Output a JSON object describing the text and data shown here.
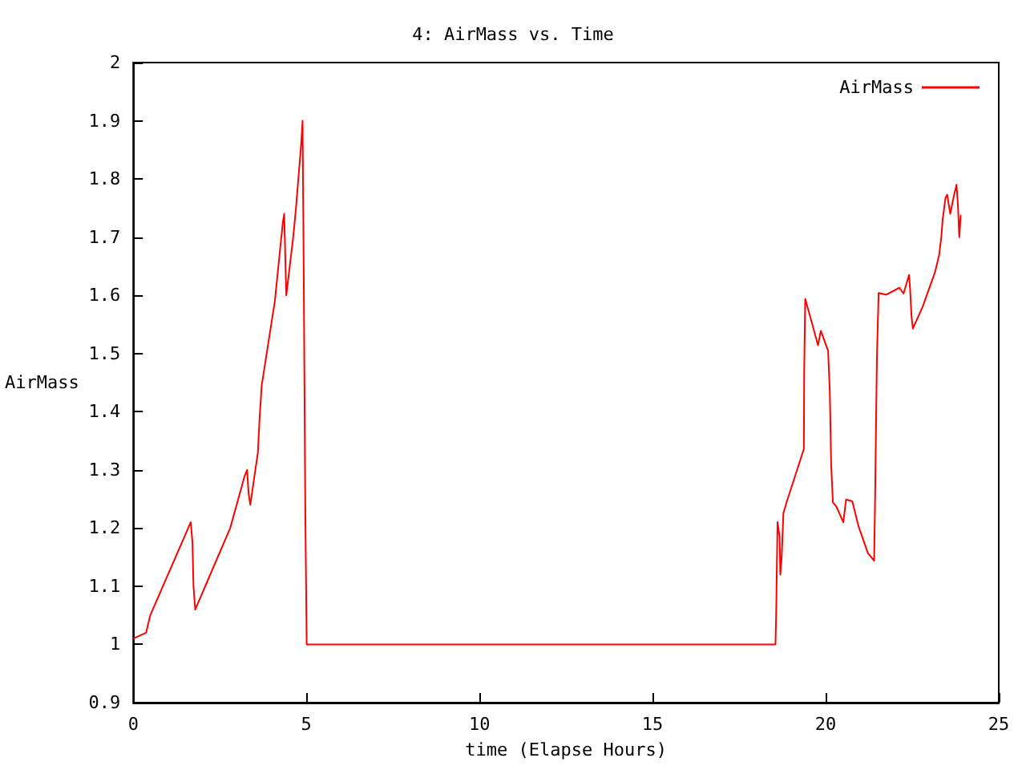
{
  "chart_data": {
    "type": "line",
    "title": "4: AirMass vs. Time",
    "xlabel": "time (Elapse Hours)",
    "ylabel": "AirMass",
    "x": [
      0,
      0.37,
      0.49,
      1.66,
      1.71,
      1.74,
      1.79,
      2.8,
      3.22,
      3.29,
      3.33,
      3.38,
      3.6,
      3.65,
      3.71,
      4.09,
      4.32,
      4.36,
      4.42,
      4.62,
      4.7,
      4.85,
      4.89,
      4.92,
      4.97,
      5.01,
      18.55,
      18.57,
      18.61,
      18.67,
      18.69,
      18.73,
      18.78,
      18.87,
      19.37,
      19.38,
      19.41,
      19.55,
      19.78,
      19.86,
      20.07,
      20.12,
      20.16,
      20.21,
      20.31,
      20.51,
      20.59,
      20.77,
      20.95,
      21.22,
      21.4,
      21.43,
      21.48,
      21.53,
      21.75,
      22.13,
      22.25,
      22.41,
      22.44,
      22.48,
      22.52,
      22.8,
      23.16,
      23.28,
      23.34,
      23.38,
      23.46,
      23.51,
      23.6,
      23.69,
      23.78,
      23.82,
      23.86,
      23.9
    ],
    "series": [
      {
        "name": "AirMass",
        "color": "#ff0000",
        "values": [
          1.01,
          1.02,
          1.05,
          1.21,
          1.175,
          1.1,
          1.06,
          1.2,
          1.29,
          1.3,
          1.26,
          1.24,
          1.33,
          1.39,
          1.445,
          1.59,
          1.725,
          1.74,
          1.6,
          1.7,
          1.75,
          1.86,
          1.9,
          1.67,
          1.226,
          1,
          1,
          1.05,
          1.21,
          1.185,
          1.12,
          1.15,
          1.226,
          1.244,
          1.336,
          1.47,
          1.594,
          1.564,
          1.514,
          1.539,
          1.505,
          1.434,
          1.308,
          1.244,
          1.237,
          1.21,
          1.249,
          1.246,
          1.203,
          1.157,
          1.144,
          1.258,
          1.491,
          1.604,
          1.601,
          1.613,
          1.603,
          1.635,
          1.61,
          1.564,
          1.543,
          1.58,
          1.64,
          1.67,
          1.7,
          1.73,
          1.767,
          1.773,
          1.74,
          1.767,
          1.79,
          1.756,
          1.7,
          1.738
        ]
      }
    ],
    "xlim": [
      0,
      25
    ],
    "xticks": [
      0,
      5,
      10,
      15,
      20,
      25
    ],
    "ylim": [
      0.9,
      2
    ],
    "yticks": [
      0.9,
      1,
      1.1,
      1.2,
      1.3,
      1.4,
      1.5,
      1.6,
      1.7,
      1.8,
      1.9,
      2
    ],
    "grid": false,
    "legend": "top right",
    "marker": "none",
    "line_style": "solid"
  }
}
